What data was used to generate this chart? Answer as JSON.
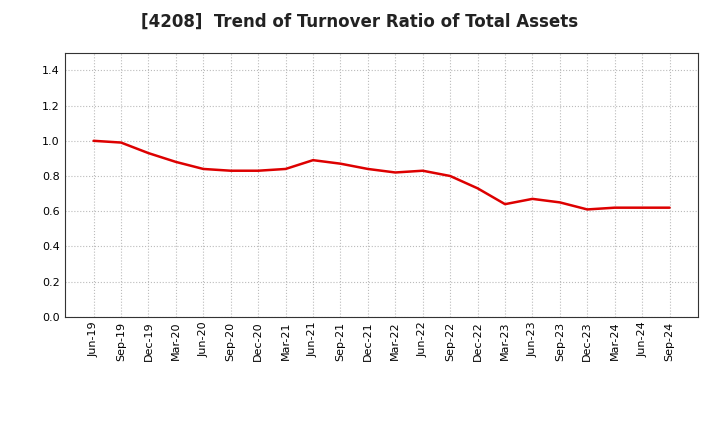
{
  "title": "[4208]  Trend of Turnover Ratio of Total Assets",
  "x_labels": [
    "Jun-19",
    "Sep-19",
    "Dec-19",
    "Mar-20",
    "Jun-20",
    "Sep-20",
    "Dec-20",
    "Mar-21",
    "Jun-21",
    "Sep-21",
    "Dec-21",
    "Mar-22",
    "Jun-22",
    "Sep-22",
    "Dec-22",
    "Mar-23",
    "Jun-23",
    "Sep-23",
    "Dec-23",
    "Mar-24",
    "Jun-24",
    "Sep-24"
  ],
  "values": [
    1.0,
    0.99,
    0.93,
    0.88,
    0.84,
    0.83,
    0.83,
    0.84,
    0.89,
    0.87,
    0.84,
    0.82,
    0.83,
    0.8,
    0.73,
    0.64,
    0.67,
    0.65,
    0.61,
    0.62,
    0.62,
    0.62
  ],
  "line_color": "#dd0000",
  "line_width": 1.8,
  "ylim": [
    0.0,
    1.5
  ],
  "yticks": [
    0.0,
    0.2,
    0.4,
    0.6,
    0.8,
    1.0,
    1.2,
    1.4
  ],
  "grid_color": "#bbbbbb",
  "bg_color": "#ffffff",
  "title_fontsize": 12,
  "tick_fontsize": 8
}
